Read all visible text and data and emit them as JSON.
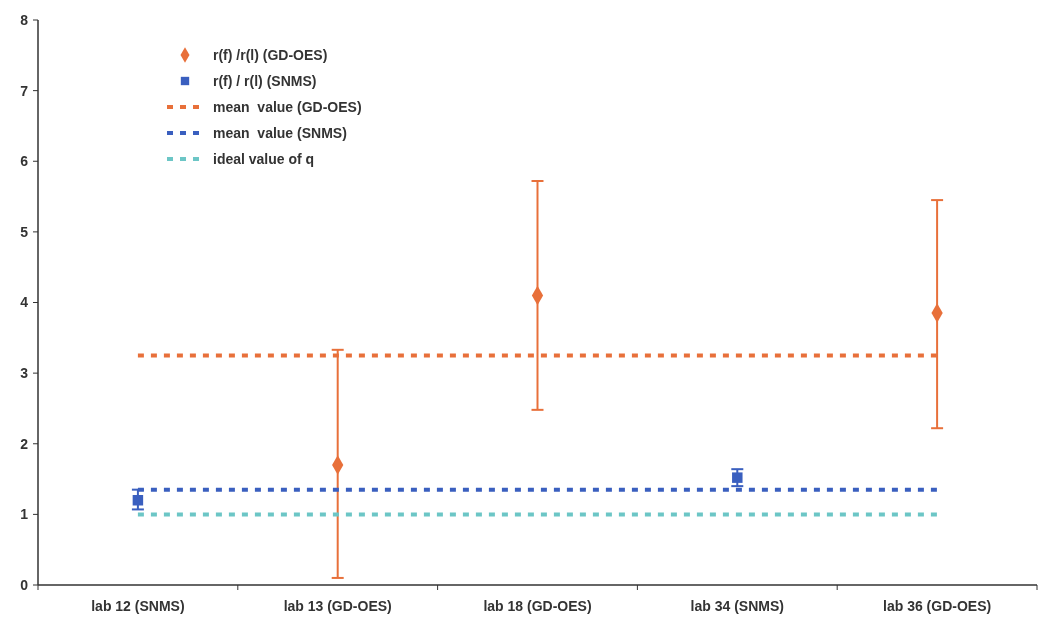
{
  "chart_data": {
    "type": "scatter",
    "categories": [
      "lab 12 (SNMS)",
      "lab 13 (GD-OES)",
      "lab 18 (GD-OES)",
      "lab 34 (SNMS)",
      "lab 36 (GD-OES)"
    ],
    "ylim": [
      0,
      8
    ],
    "yticks": [
      0,
      1,
      2,
      3,
      4,
      5,
      6,
      7,
      8
    ],
    "grid": false,
    "legend": "top left",
    "series": [
      {
        "name": "r(f) /r(l) (GD-OES)",
        "marker": "diamond",
        "color": "#e8703a",
        "values": [
          null,
          1.7,
          4.1,
          null,
          3.85
        ],
        "errors": [
          null,
          [
            0.1,
            3.33
          ],
          [
            2.48,
            5.72
          ],
          null,
          [
            2.22,
            5.45
          ]
        ]
      },
      {
        "name": "r(f) / r(l) (SNMS)",
        "marker": "square",
        "color": "#3a5fbf",
        "values": [
          1.2,
          null,
          null,
          1.52,
          null
        ],
        "errors": [
          [
            1.07,
            1.35
          ],
          null,
          null,
          [
            1.4,
            1.64
          ],
          null
        ]
      },
      {
        "name": "mean  value (GD-OES)",
        "type": "line",
        "marker": "none",
        "line_style": "dashed",
        "color": "#e8703a",
        "values": [
          3.25,
          3.25,
          3.25,
          3.25,
          3.25
        ]
      },
      {
        "name": "mean  value (SNMS)",
        "type": "line",
        "marker": "none",
        "line_style": "dashed",
        "color": "#3a5fbf",
        "values": [
          1.35,
          1.35,
          1.35,
          1.35,
          1.35
        ]
      },
      {
        "name": "ideal value of q",
        "type": "line",
        "marker": "none",
        "line_style": "dashed",
        "color": "#6cc6c6",
        "values": [
          1,
          1,
          1,
          1,
          1
        ]
      }
    ]
  }
}
